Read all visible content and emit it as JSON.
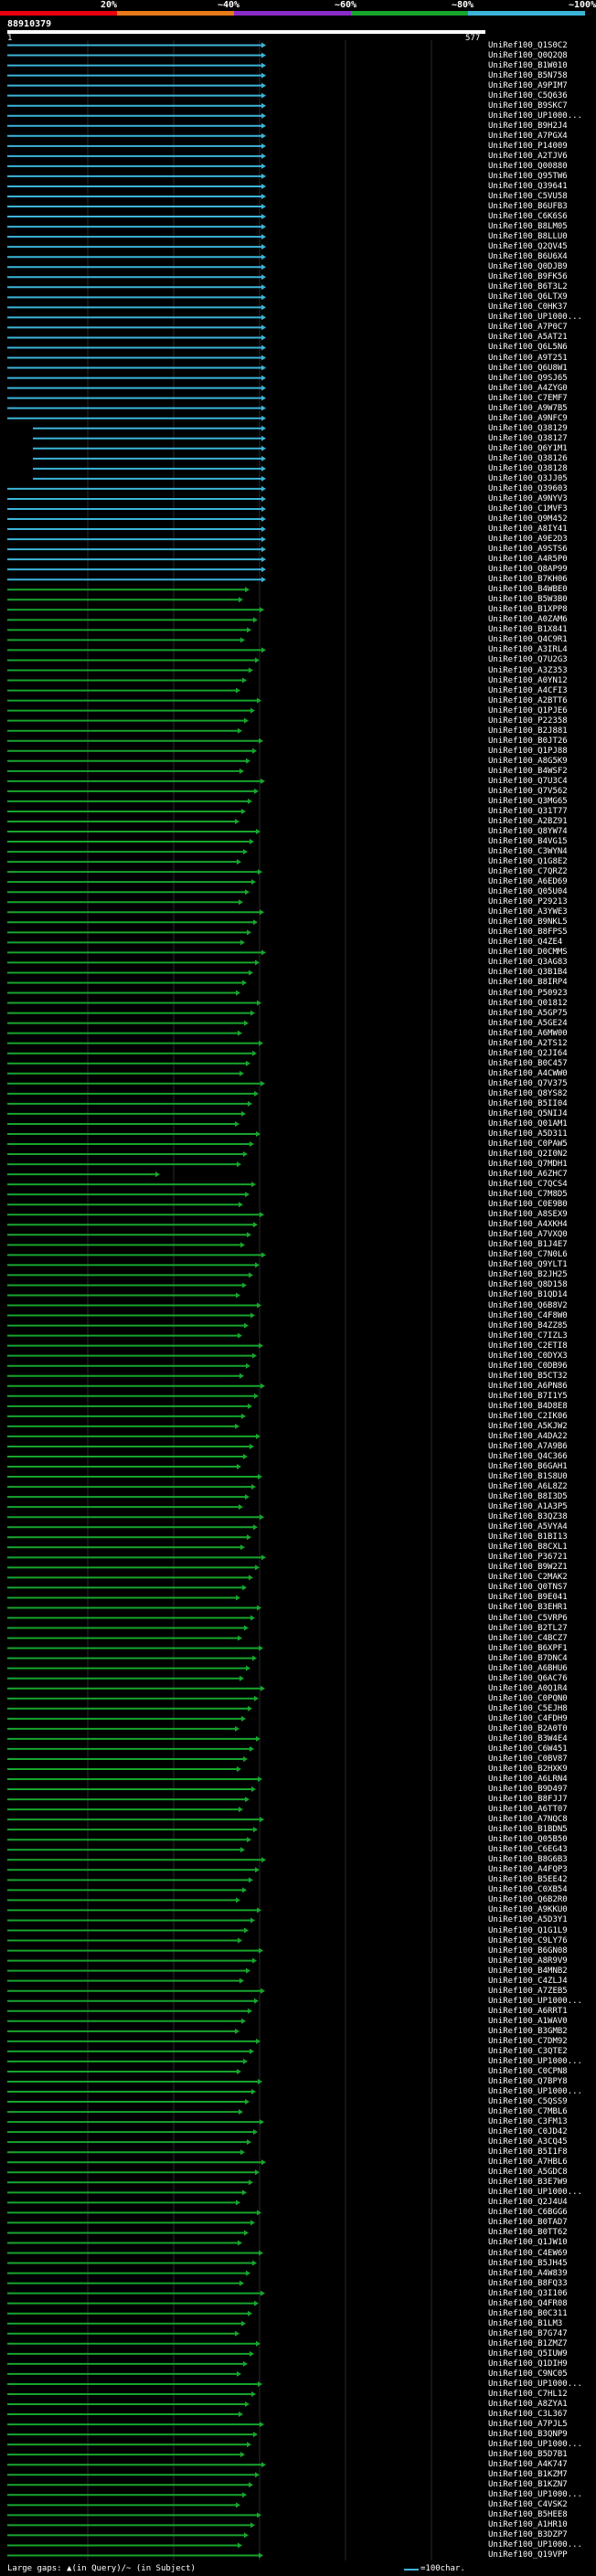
{
  "query_id": "88910379",
  "ruler": {
    "start": "1",
    "end": "577"
  },
  "scale": {
    "labels": [
      "20%",
      "~40%",
      "~60%",
      "~80%",
      "~100%"
    ],
    "colors": [
      "#e8000c",
      "#e87a1a",
      "#8a2cc7",
      "#17a52d",
      "#3cb4d8"
    ]
  },
  "legend": {
    "gaps_text": "Large gaps: ▲(in Query)/~ (in Subject)",
    "scale_text": "=100char."
  },
  "hits": [
    "UniRef100_Q1S0C2",
    "UniRef100_Q0Q2Q8",
    "UniRef100_B1W010",
    "UniRef100_B5N758",
    "UniRef100_A9PIM7",
    "UniRef100_C5Q636",
    "UniRef100_B9SKC7",
    "UniRef100_UP1000...",
    "UniRef100_B9H2J4",
    "UniRef100_A7PGX4",
    "UniRef100_P14009",
    "UniRef100_A2TJV6",
    "UniRef100_Q00880",
    "UniRef100_Q95TW6",
    "UniRef100_Q39641",
    "UniRef100_C5VU58",
    "UniRef100_B6UFB3",
    "UniRef100_C6K6S6",
    "UniRef100_B8LM05",
    "UniRef100_B8LLU0",
    "UniRef100_Q2QV45",
    "UniRef100_B6U6X4",
    "UniRef100_Q0DJB9",
    "UniRef100_B9FK56",
    "UniRef100_B6T3L2",
    "UniRef100_Q6LTX9",
    "UniRef100_C0HK37",
    "UniRef100_UP1000...",
    "UniRef100_A7P0C7",
    "UniRef100_A5AT21",
    "UniRef100_Q6L5N6",
    "UniRef100_A9T251",
    "UniRef100_Q6U8W1",
    "UniRef100_Q9SJ65",
    "UniRef100_A4ZYG0",
    "UniRef100_C7EMF7",
    "UniRef100_A9W7B5",
    "UniRef100_A9NFC9",
    "UniRef100_Q38129",
    "UniRef100_Q38127",
    "UniRef100_Q6Y1M1",
    "UniRef100_Q38126",
    "UniRef100_Q38128",
    "UniRef100_Q3JJ05",
    "UniRef100_Q39603",
    "UniRef100_A9NYV3",
    "UniRef100_C1MVF3",
    "UniRef100_Q9M452",
    "UniRef100_A8IY41",
    "UniRef100_A9E2D3",
    "UniRef100_A9STS6",
    "UniRef100_A4R5P0",
    "UniRef100_Q8AP99",
    "UniRef100_B7KH06",
    "UniRef100_B4WBE0",
    "UniRef100_B5W3B0",
    "UniRef100_B1XPP8",
    "UniRef100_A0ZAM6",
    "UniRef100_B1X841",
    "UniRef100_Q4C9R1",
    "UniRef100_A3IRL4",
    "UniRef100_Q7U2G3",
    "UniRef100_A3Z353",
    "UniRef100_A0YN12",
    "UniRef100_A4CFI3",
    "UniRef100_A2BTT6",
    "UniRef100_Q1PJE6",
    "UniRef100_P22358",
    "UniRef100_B2J881",
    "UniRef100_B0JT26",
    "UniRef100_Q1PJ88",
    "UniRef100_A8G5K9",
    "UniRef100_B4WSF2",
    "UniRef100_Q7U3C4",
    "UniRef100_Q7V562",
    "UniRef100_Q3MG65",
    "UniRef100_Q31T77",
    "UniRef100_A2BZ91",
    "UniRef100_Q8YW74",
    "UniRef100_B4VG15",
    "UniRef100_C3WYN4",
    "UniRef100_Q1G8E2",
    "UniRef100_C7QRZ2",
    "UniRef100_A6ED69",
    "UniRef100_Q05U04",
    "UniRef100_P29213",
    "UniRef100_A3YWE3",
    "UniRef100_B9NKL5",
    "UniRef100_B8FPS5",
    "UniRef100_Q4ZE4",
    "UniRef100_D0CMMS",
    "UniRef100_Q3AG83",
    "UniRef100_Q3B1B4",
    "UniRef100_B8IRP4",
    "UniRef100_P50923",
    "UniRef100_Q01812",
    "UniRef100_A5GP75",
    "UniRef100_A5GE24",
    "UniRef100_A6MW00",
    "UniRef100_A2TS12",
    "UniRef100_Q2JI64",
    "UniRef100_B0C457",
    "UniRef100_A4CWW0",
    "UniRef100_Q7V375",
    "UniRef100_Q8YS82",
    "UniRef100_B5II04",
    "UniRef100_Q5NIJ4",
    "UniRef100_Q01AM1",
    "UniRef100_A5D311",
    "UniRef100_C0PAW5",
    "UniRef100_Q2I0N2",
    "UniRef100_Q7MDH1",
    "UniRef100_A6ZHC7",
    "UniRef100_C7QCS4",
    "UniRef100_C7M8D5",
    "UniRef100_C0E9B0",
    "UniRef100_A8SEX9",
    "UniRef100_A4XKH4",
    "UniRef100_A7VXQ0",
    "UniRef100_B1J4E7",
    "UniRef100_C7N0L6",
    "UniRef100_Q9YLT1",
    "UniRef100_B2JH25",
    "UniRef100_Q8D158",
    "UniRef100_B1QD14",
    "UniRef100_Q6B8V2",
    "UniRef100_C4F8W0",
    "UniRef100_B4ZZ85",
    "UniRef100_C7IZL3",
    "UniRef100_C2ETI8",
    "UniRef100_C0DYX3",
    "UniRef100_C0DB96",
    "UniRef100_B5CT32",
    "UniRef100_A6PN86",
    "UniRef100_B7I1Y5",
    "UniRef100_B4D8E8",
    "UniRef100_C2IK06",
    "UniRef100_A5KJW2",
    "UniRef100_A4DA22",
    "UniRef100_A7A9B6",
    "UniRef100_Q4C366",
    "UniRef100_B6GAH1",
    "UniRef100_B1S8U0",
    "UniRef100_A6L8Z2",
    "UniRef100_B8I3D5",
    "UniRef100_A1A3P5",
    "UniRef100_B3QZ38",
    "UniRef100_A5VYA4",
    "UniRef100_B1BI13",
    "UniRef100_B8CXL1",
    "UniRef100_P36721",
    "UniRef100_B9W2Z1",
    "UniRef100_C2MAK2",
    "UniRef100_Q0TNS7",
    "UniRef100_B9E041",
    "UniRef100_B3EHR1",
    "UniRef100_C5VRP6",
    "UniRef100_B2TL27",
    "UniRef100_C4BCZ7",
    "UniRef100_B6XPF1",
    "UniRef100_B7DNC4",
    "UniRef100_A6BHU6",
    "UniRef100_Q6AC76",
    "UniRef100_A0Q1R4",
    "UniRef100_C0PQN0",
    "UniRef100_C5EJH8",
    "UniRef100_C4FDH9",
    "UniRef100_B2A0T0",
    "UniRef100_B3W4E4",
    "UniRef100_C6W451",
    "UniRef100_C0BV87",
    "UniRef100_B2HXK9",
    "UniRef100_A6LRN4",
    "UniRef100_B9D497",
    "UniRef100_B8FJJ7",
    "UniRef100_A6TT07",
    "UniRef100_A7NQC8",
    "UniRef100_B1BDN5",
    "UniRef100_Q05B50",
    "UniRef100_C6EG43",
    "UniRef100_B8G6B3",
    "UniRef100_A4FQP3",
    "UniRef100_B5EE42",
    "UniRef100_C0XB54",
    "UniRef100_Q6B2R0",
    "UniRef100_A9KKU0",
    "UniRef100_A5D3Y1",
    "UniRef100_Q1G1L9",
    "UniRef100_C9LY76",
    "UniRef100_B6GN08",
    "UniRef100_A8R9V9",
    "UniRef100_B4MNB2",
    "UniRef100_C4ZLJ4",
    "UniRef100_A7ZEB5",
    "UniRef100_UP1000...",
    "UniRef100_A6RRT1",
    "UniRef100_A1WAV0",
    "UniRef100_B3GMB2",
    "UniRef100_C7DM92",
    "UniRef100_C3QTE2",
    "UniRef100_UP1000...",
    "UniRef100_C0CPN8",
    "UniRef100_Q7BPY8",
    "UniRef100_UP1000...",
    "UniRef100_C5QSS9",
    "UniRef100_C7MBL6",
    "UniRef100_C3FM13",
    "UniRef100_C0JD42",
    "UniRef100_A3CQ45",
    "UniRef100_B5I1F8",
    "UniRef100_A7HBL6",
    "UniRef100_A5GDC8",
    "UniRef100_B3E7W9",
    "UniRef100_UP1000...",
    "UniRef100_Q2J4U4",
    "UniRef100_C6BGG6",
    "UniRef100_B0TAD7",
    "UniRef100_B0TT62",
    "UniRef100_Q1JW10",
    "UniRef100_C4EW69",
    "UniRef100_B5JH45",
    "UniRef100_A4W839",
    "UniRef100_B8FQ33",
    "UniRef100_Q3I106",
    "UniRef100_Q4FR08",
    "UniRef100_B0C311",
    "UniRef100_B1LM3",
    "UniRef100_B7G747",
    "UniRef100_B1ZMZ7",
    "UniRef100_Q5IUW9",
    "UniRef100_Q1DIH9",
    "UniRef100_C9NC05",
    "UniRef100_UP1000...",
    "UniRef100_C7HL12",
    "UniRef100_A8ZYA1",
    "UniRef100_C3L367",
    "UniRef100_A7PJL5",
    "UniRef100_B3QNP9",
    "UniRef100_UP1000...",
    "UniRef100_B5D7B1",
    "UniRef100_A4K747",
    "UniRef100_B1KZM7",
    "UniRef100_B1KZN7",
    "UniRef100_UP1000...",
    "UniRef100_C4VSK2",
    "UniRef100_B5HEE8",
    "UniRef100_A1HR10",
    "UniRef100_B3DZP7",
    "UniRef100_UP1000...",
    "UniRef100_Q19VPP"
  ]
}
